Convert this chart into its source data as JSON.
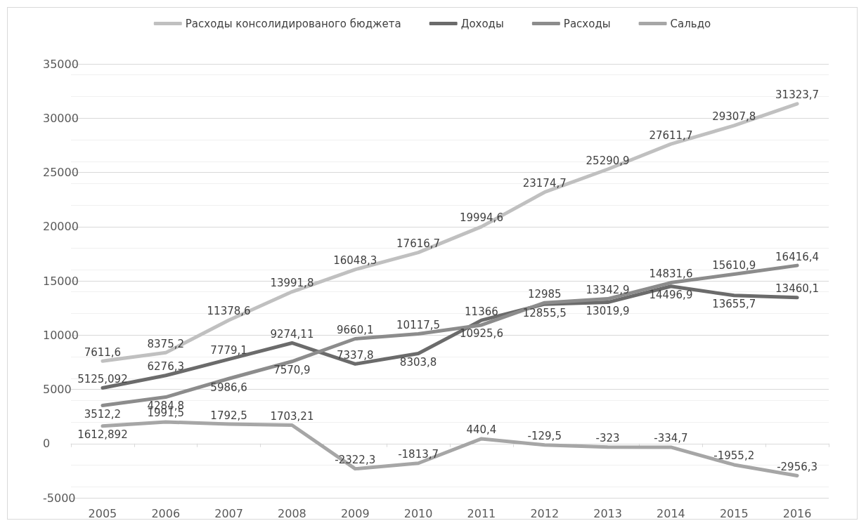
{
  "chart_data": {
    "type": "line",
    "categories": [
      "2005",
      "2006",
      "2007",
      "2008",
      "2009",
      "2010",
      "2011",
      "2012",
      "2013",
      "2014",
      "2015",
      "2016"
    ],
    "series": [
      {
        "name": "Расходы консолидированого бюджета",
        "color": "#c0c0c0",
        "values": [
          7611.6,
          8375.2,
          11378.6,
          13991.8,
          16048.3,
          17616.7,
          19994.6,
          23174.7,
          25290.9,
          27611.7,
          29307.8,
          31323.7
        ],
        "value_labels": [
          "7611,6",
          "8375,2",
          "11378,6",
          "13991,8",
          "16048,3",
          "17616,7",
          "19994,6",
          "23174,7",
          "25290,9",
          "27611,7",
          "29307,8",
          "31323,7"
        ]
      },
      {
        "name": "Доходы",
        "color": "#6b6b6b",
        "values": [
          5125.092,
          6276.3,
          7779.1,
          9274.11,
          7337.8,
          8303.8,
          11366,
          12855.5,
          13019.9,
          14496.9,
          13655.7,
          13460.1
        ],
        "value_labels": [
          "5125,092",
          "6276,3",
          "7779,1",
          "9274,11",
          "7337,8",
          "8303,8",
          "11366",
          "12855,5",
          "13019,9",
          "14496,9",
          "13655,7",
          "13460,1"
        ]
      },
      {
        "name": "Расходы",
        "color": "#8c8c8c",
        "values": [
          3512.2,
          4284.8,
          5986.6,
          7570.9,
          9660.1,
          10117.5,
          10925.6,
          12985,
          13342.9,
          14831.6,
          15610.9,
          16416.4
        ],
        "value_labels": [
          "3512,2",
          "4284,8",
          "5986,6",
          "7570,9",
          "9660,1",
          "10117,5",
          "10925,6",
          "12985",
          "13342,9",
          "14831,6",
          "15610,9",
          "16416,4"
        ]
      },
      {
        "name": "Сальдо",
        "color": "#a6a6a6",
        "values": [
          1612.892,
          1991.5,
          1792.5,
          1703.21,
          -2322.3,
          -1813.7,
          440.4,
          -129.5,
          -323,
          -334.7,
          -1955.2,
          -2956.3
        ],
        "value_labels": [
          "1612,892",
          "1991,5",
          "1792,5",
          "1703,21",
          "-2322,3",
          "-1813,7",
          "440,4",
          "-129,5",
          "-323",
          "-334,7",
          "-1955,2",
          "-2956,3"
        ]
      }
    ],
    "ylim": [
      -5000,
      35000
    ],
    "yticks": [
      -5000,
      0,
      5000,
      10000,
      15000,
      20000,
      25000,
      30000,
      35000
    ],
    "grid": true,
    "legend": "top",
    "marker": "none",
    "line_style": "solid"
  }
}
